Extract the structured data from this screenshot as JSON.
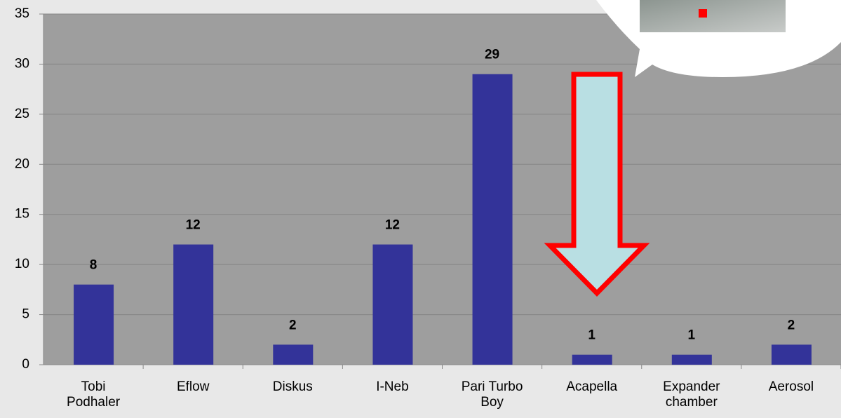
{
  "chart_data": {
    "type": "bar",
    "categories": [
      "Tobi Podhaler",
      "Eflow",
      "Diskus",
      "I-Neb",
      "Pari Turbo Boy",
      "Acapella",
      "Expander chamber",
      "Aerosol"
    ],
    "values": [
      8,
      12,
      2,
      12,
      29,
      1,
      1,
      2
    ],
    "color": "#333399",
    "ylim": [
      0,
      35
    ],
    "yticks": [
      0,
      5,
      10,
      15,
      20,
      25,
      30,
      35
    ],
    "grid": true
  }
}
